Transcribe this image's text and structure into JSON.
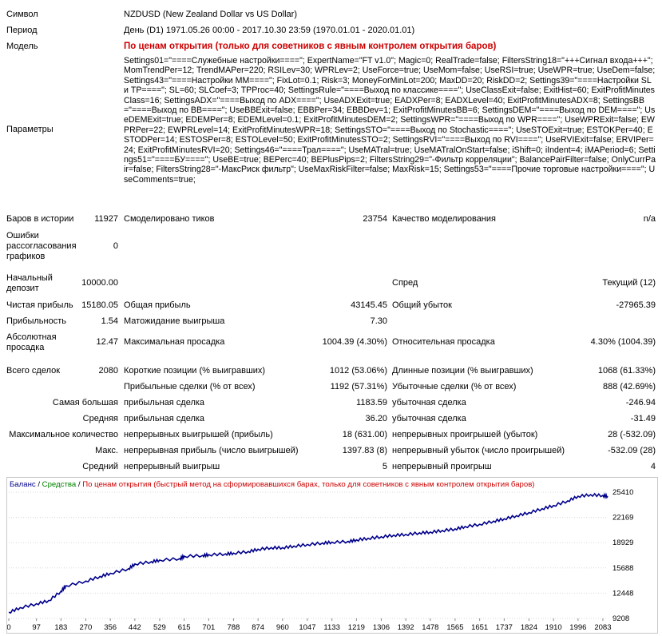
{
  "report": {
    "symbol": {
      "label": "Символ",
      "value": "NZDUSD (New Zealand Dollar vs US Dollar)"
    },
    "period": {
      "label": "Период",
      "value": "День (D1) 1971.05.26 00:00 - 2017.10.30 23:59 (1970.01.01 - 2020.01.01)"
    },
    "model": {
      "label": "Модель",
      "value": "По ценам открытия (только для советников с явным контролем открытия баров)"
    },
    "params": {
      "label": "Параметры",
      "value": "Settings01=\"====Служебные настройки====\"; ExpertName=\"FT v1.0\"; Magic=0; RealTrade=false; FiltersString18=\"+++Сигнал входа+++\"; MomTrendPer=12; TrendMAPer=220; RSILev=30; WPRLev=2; UseForce=true; UseMom=false; UseRSI=true; UseWPR=true; UseDem=false; Settings43=\"====Настройки MM====\"; FixLot=0.1; Risk=3; MoneyForMinLot=200; MaxDD=20; RiskDD=2; Settings39=\"====Настройки SL и TP====\"; SL=60; SLCoef=3; TPProc=40; SettingsRule=\"====Выход по классике====\"; UseClassExit=false; ExitHist=60; ExitProfitMinutesClass=16; SettingsADX=\"====Выход по ADX====\"; UseADXExit=true; EADXPer=8; EADXLevel=40; ExitProfitMinutesADX=8; SettingsBB=\"====Выход по BB====\"; UseBBExit=false; EBBPer=34; EBBDev=1; ExitProfitMinutesBB=6; SettingsDEM=\"====Выход по DEM====\"; UseDEMExit=true; EDEMPer=8; EDEMLevel=0.1; ExitProfitMinutesDEM=2; SettingsWPR=\"====Выход по WPR====\"; UseWPRExit=false; EWPRPer=22; EWPRLevel=14; ExitProfitMinutesWPR=18; SettingsSTO=\"====Выход по Stochastic====\"; UseSTOExit=true; ESTOKPer=40; ESTODPer=14; ESTOSPer=8; ESTOLevel=50; ExitProfitMinutesSTO=2; SettingsRVI=\"====Выход по RVI====\"; UseRVIExit=false; ERVIPer=24; ExitProfitMinutesRVI=20; Settings46=\"====Трал====\"; UseMATral=true; UseMATralOnStart=false; iShift=0; iIndent=4; iMAPeriod=6; Settings51=\"====БУ====\"; UseBE=true; BEPerc=40; BEPlusPips=2; FiltersString29=\"-Фильтр корреляции\"; BalancePairFilter=false; OnlyCurrPair=false; FiltersString28=\"-МаксРиск фильтр\"; UseMaxRiskFilter=false; MaxRisk=15; Settings53=\"====Прочие торговые настройки====\"; UseComments=true;"
    },
    "bars": {
      "label": "Баров в истории",
      "value": "11927"
    },
    "ticks": {
      "label": "Смоделировано тиков",
      "value": "23754"
    },
    "quality": {
      "label": "Качество моделирования",
      "value": "n/a"
    },
    "errors": {
      "label1": "Ошибки",
      "label2": "рассогласования",
      "label3": "графиков",
      "value": "0"
    },
    "deposit": {
      "label1": "Начальный",
      "label2": "депозит",
      "value": "10000.00"
    },
    "spread": {
      "label": "Спред",
      "value": "Текущий (12)"
    },
    "net_profit": {
      "label": "Чистая прибыль",
      "value": "15180.05"
    },
    "gross_profit": {
      "label": "Общая прибыль",
      "value": "43145.45"
    },
    "gross_loss": {
      "label": "Общий убыток",
      "value": "-27965.39"
    },
    "profit_factor": {
      "label": "Прибыльность",
      "value": "1.54"
    },
    "expected_payoff": {
      "label": "Матожидание выигрыша",
      "value": "7.30"
    },
    "abs_dd": {
      "label1": "Абсолютная",
      "label2": "просадка",
      "value": "12.47"
    },
    "max_dd": {
      "label": "Максимальная просадка",
      "value": "1004.39 (4.30%)"
    },
    "rel_dd": {
      "label": "Относительная просадка",
      "value": "4.30% (1004.39)"
    },
    "total_trades": {
      "label": "Всего сделок",
      "value": "2080"
    },
    "short_pos": {
      "label": "Короткие позиции (% выигравших)",
      "value": "1012 (53.06%)"
    },
    "long_pos": {
      "label": "Длинные позиции (% выигравших)",
      "value": "1068 (61.33%)"
    },
    "profit_trades": {
      "label": "Прибыльные сделки (% от всех)",
      "value": "1192 (57.31%)"
    },
    "loss_trades": {
      "label": "Убыточные сделки (% от всех)",
      "value": "888 (42.69%)"
    },
    "largest": {
      "label": "Самая большая",
      "p_label": "прибыльная сделка",
      "p_value": "1183.59",
      "l_label": "убыточная сделка",
      "l_value": "-246.94"
    },
    "average": {
      "label": "Средняя",
      "p_label": "прибыльная сделка",
      "p_value": "36.20",
      "l_label": "убыточная сделка",
      "l_value": "-31.49"
    },
    "max_consec": {
      "label": "Максимальное количество",
      "p_label": "непрерывных выигрышей (прибыль)",
      "p_value": "18 (631.00)",
      "l_label": "непрерывных проигрышей (убыток)",
      "l_value": "28 (-532.09)"
    },
    "max_consec_profit": {
      "label": "Макс.",
      "p_label": "непрерывная прибыль (число выигрышей)",
      "p_value": "1397.83 (8)",
      "l_label": "непрерывный убыток (число проигрышей)",
      "l_value": "-532.09 (28)"
    },
    "avg_consec": {
      "label": "Средний",
      "p_label": "непрерывный выигрыш",
      "p_value": "5",
      "l_label": "непрерывный проигрыш",
      "l_value": "4"
    }
  },
  "chart_data": {
    "type": "line",
    "legend": {
      "balance": "Баланс",
      "sep1": " / ",
      "equity": "Средства",
      "sep2": " / ",
      "model": "По ценам открытия (быстрый метод на сформировавшихся барах, только для советников с явным контролем открытия баров)"
    },
    "colors": {
      "balance": "#00008b",
      "equity": "#008000",
      "model": "#cc0000",
      "grid": "#d8d8d8"
    },
    "x_ticks": [
      "0",
      "97",
      "183",
      "270",
      "356",
      "442",
      "529",
      "615",
      "701",
      "788",
      "874",
      "960",
      "1047",
      "1133",
      "1219",
      "1306",
      "1392",
      "1478",
      "1565",
      "1651",
      "1737",
      "1824",
      "1910",
      "1996",
      "2083"
    ],
    "y_ticks": [
      "25410",
      "22169",
      "18929",
      "15688",
      "12448",
      "9208"
    ],
    "xlim": [
      0,
      2100
    ],
    "ylim": [
      9208,
      25410
    ],
    "series": [
      {
        "x": [
          0,
          40,
          97,
          140,
          183,
          200,
          270,
          320,
          356,
          420,
          442,
          500,
          529,
          600,
          615,
          680,
          701,
          760,
          788,
          840,
          874,
          920,
          960,
          1000,
          1047,
          1100,
          1133,
          1190,
          1219,
          1260,
          1306,
          1350,
          1392,
          1440,
          1478,
          1520,
          1565,
          1600,
          1651,
          1700,
          1737,
          1780,
          1824,
          1870,
          1910,
          1960,
          1996,
          2040,
          2083,
          2100
        ],
        "y": [
          10000,
          10600,
          11100,
          11500,
          12700,
          13400,
          14000,
          14600,
          15000,
          15600,
          16200,
          16500,
          16700,
          16900,
          17200,
          17300,
          17400,
          17500,
          17600,
          17800,
          18100,
          18300,
          18300,
          18500,
          18700,
          18900,
          19000,
          19100,
          19300,
          19500,
          19700,
          19900,
          20000,
          20200,
          20300,
          20500,
          20700,
          21000,
          21300,
          21700,
          22000,
          22400,
          22800,
          23300,
          23700,
          24300,
          24900,
          25100,
          25000,
          24900
        ]
      }
    ]
  }
}
